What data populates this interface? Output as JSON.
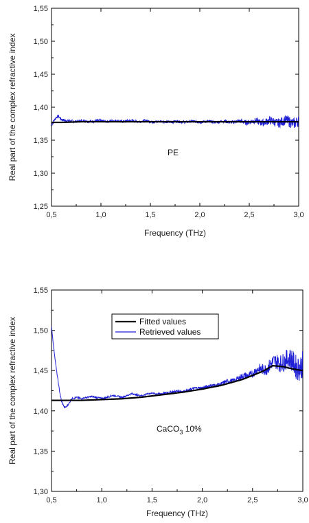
{
  "chart_data": [
    {
      "type": "line",
      "xlabel": "Frequency (THz)",
      "ylabel": "Real part of the complex refractive index",
      "xlim": [
        0.5,
        3.0
      ],
      "ylim": [
        1.25,
        1.55
      ],
      "xticks": [
        "0,5",
        "1,0",
        "1,5",
        "2,0",
        "2,5",
        "3,0"
      ],
      "yticks": [
        "1,25",
        "1,30",
        "1,35",
        "1,40",
        "1,45",
        "1,50",
        "1,55"
      ],
      "annotation": "PE",
      "grid": false,
      "series": [
        {
          "color": "#000000",
          "x": [
            0.5,
            0.55,
            0.6,
            0.8,
            1.0,
            1.2,
            1.4,
            1.6,
            1.8,
            2.0,
            2.2,
            2.4,
            2.6,
            2.8,
            3.0
          ],
          "y": [
            1.377,
            1.377,
            1.377,
            1.378,
            1.378,
            1.378,
            1.378,
            1.378,
            1.378,
            1.378,
            1.378,
            1.378,
            1.378,
            1.378,
            1.378
          ]
        },
        {
          "color": "#1f1fd6",
          "noise_envelope": [
            [
              0.5,
              0.002
            ],
            [
              2.2,
              0.002
            ],
            [
              2.5,
              0.004
            ],
            [
              2.8,
              0.007
            ],
            [
              3.0,
              0.009
            ]
          ],
          "x": [
            0.5,
            0.52,
            0.55,
            0.57,
            0.6,
            0.65,
            0.7,
            0.8,
            0.9,
            1.0,
            1.2,
            1.4,
            1.6,
            1.8,
            2.0,
            2.2,
            2.4,
            2.6,
            2.8,
            3.0
          ],
          "y": [
            1.372,
            1.378,
            1.385,
            1.387,
            1.382,
            1.379,
            1.379,
            1.379,
            1.379,
            1.379,
            1.379,
            1.379,
            1.378,
            1.378,
            1.378,
            1.378,
            1.378,
            1.378,
            1.378,
            1.378
          ]
        }
      ]
    },
    {
      "type": "line",
      "xlabel": "Frequency (THz)",
      "ylabel": "Real part of the complex refractive index",
      "xlim": [
        0.5,
        3.0
      ],
      "ylim": [
        1.3,
        1.55
      ],
      "xticks": [
        "0,5",
        "1,0",
        "1,5",
        "2,0",
        "2,5",
        "3,0"
      ],
      "yticks": [
        "1,30",
        "1,35",
        "1,40",
        "1,45",
        "1,50",
        "1,55"
      ],
      "annotation": {
        "main": "CaCO",
        "sub": "3",
        "tail": "  10%"
      },
      "legend_position": "top-right",
      "grid": false,
      "series": [
        {
          "name": "Fitted values",
          "color": "#000000",
          "x": [
            0.5,
            0.6,
            0.8,
            1.0,
            1.2,
            1.4,
            1.6,
            1.8,
            2.0,
            2.2,
            2.4,
            2.6,
            2.7,
            2.8,
            2.9,
            3.0
          ],
          "y": [
            1.413,
            1.413,
            1.413,
            1.414,
            1.415,
            1.417,
            1.42,
            1.423,
            1.427,
            1.432,
            1.439,
            1.449,
            1.456,
            1.455,
            1.452,
            1.45
          ]
        },
        {
          "name": "Retrieved values",
          "color": "#1f1fd6",
          "noise_envelope": [
            [
              0.5,
              0.001
            ],
            [
              1.5,
              0.001
            ],
            [
              2.0,
              0.002
            ],
            [
              2.3,
              0.003
            ],
            [
              2.5,
              0.005
            ],
            [
              2.7,
              0.009
            ],
            [
              2.85,
              0.013
            ],
            [
              3.0,
              0.017
            ]
          ],
          "x": [
            0.5,
            0.52,
            0.55,
            0.58,
            0.6,
            0.63,
            0.65,
            0.68,
            0.7,
            0.75,
            0.8,
            0.9,
            1.0,
            1.1,
            1.2,
            1.3,
            1.4,
            1.5,
            1.6,
            1.7,
            1.8,
            1.9,
            2.0,
            2.1,
            2.2,
            2.3,
            2.4,
            2.5,
            2.6,
            2.7,
            2.8,
            2.9,
            3.0
          ],
          "y": [
            1.505,
            1.48,
            1.45,
            1.425,
            1.412,
            1.404,
            1.405,
            1.41,
            1.415,
            1.417,
            1.415,
            1.418,
            1.415,
            1.419,
            1.417,
            1.421,
            1.419,
            1.422,
            1.421,
            1.424,
            1.424,
            1.427,
            1.429,
            1.431,
            1.434,
            1.438,
            1.442,
            1.447,
            1.452,
            1.458,
            1.463,
            1.46,
            1.455
          ]
        }
      ]
    }
  ]
}
